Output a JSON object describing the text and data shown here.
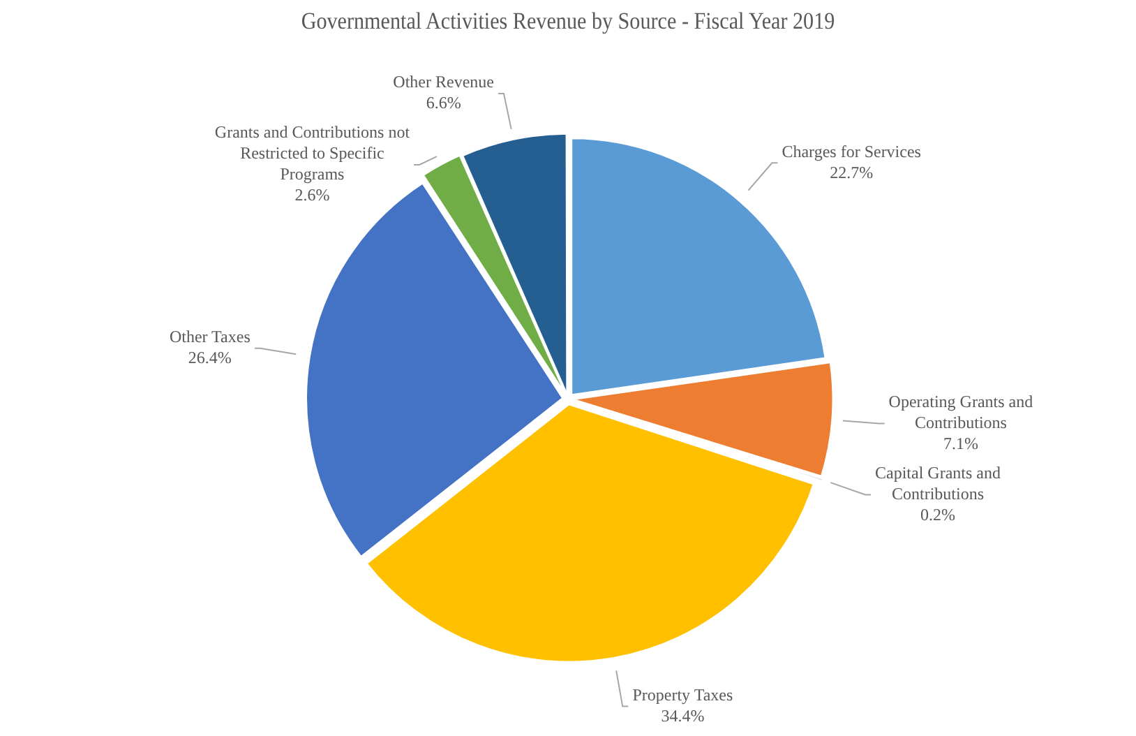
{
  "chart_data": {
    "type": "pie",
    "title": "Governmental Activities Revenue by Source - Fiscal Year 2019",
    "categories": [
      "Charges for Services",
      "Operating Grants and Contributions",
      "Capital Grants and Contributions",
      "Property Taxes",
      "Other Taxes",
      "Grants and Contributions not Restricted to Specific Programs",
      "Other Revenue"
    ],
    "values": [
      22.7,
      7.1,
      0.2,
      34.4,
      26.4,
      2.6,
      6.6
    ],
    "value_labels": [
      "22.7%",
      "7.1%",
      "0.2%",
      "34.4%",
      "26.4%",
      "2.6%",
      "6.6%"
    ],
    "colors": [
      "#5b9bd5",
      "#ed7d31",
      "#595959",
      "#ffc000",
      "#4472c4",
      "#70ad47",
      "#255e91"
    ],
    "legend": false
  }
}
